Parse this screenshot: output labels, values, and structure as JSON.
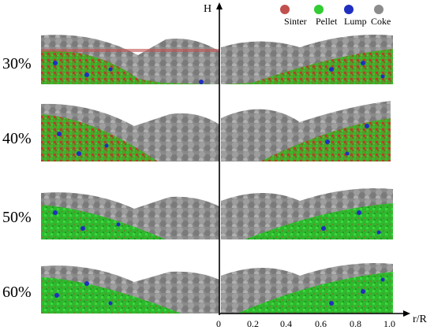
{
  "axis": {
    "y_label": "H",
    "x_label": "r/R",
    "x_ticks": [
      "0",
      "0.2",
      "0.4",
      "0.6",
      "0.8",
      "1.0"
    ]
  },
  "legend": [
    {
      "label": "Sinter",
      "color": "#c0504d"
    },
    {
      "label": "Pellet",
      "color": "#33cc33"
    },
    {
      "label": "Lump",
      "color": "#1f2fbf"
    },
    {
      "label": "Coke",
      "color": "#8c8c8c"
    }
  ],
  "panels": [
    {
      "label": "30%"
    },
    {
      "label": "40%"
    },
    {
      "label": "50%"
    },
    {
      "label": "60%"
    }
  ]
}
